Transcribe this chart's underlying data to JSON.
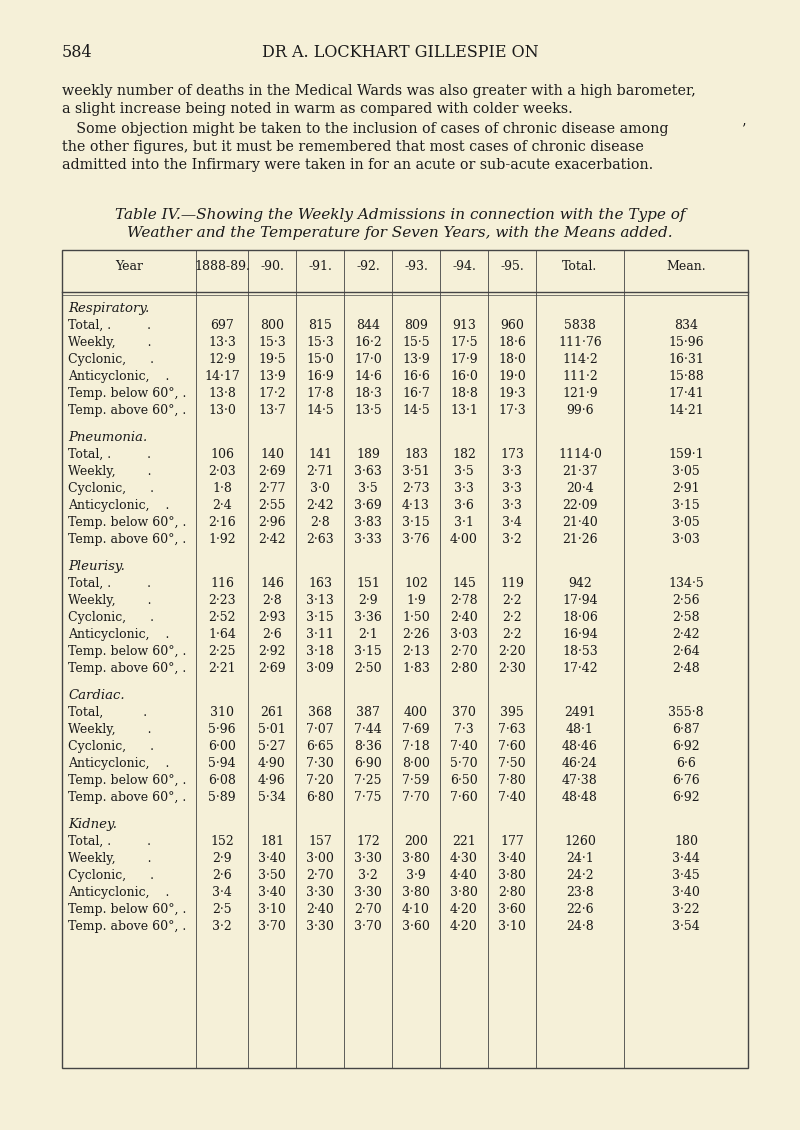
{
  "page_number": "584",
  "header": "DR A. LOCKHART GILLESPIE ON",
  "background_color": "#f5f0d8",
  "text_color": "#1a1a1a",
  "table_title_line1": "Table IV.—Showing the Weekly Admissions in connection with the Type of",
  "table_title_line2": "Weather and the Temperature for Seven Years, with the Means added.",
  "col_headers": [
    "Year",
    "1888-89.",
    "-90.",
    "-91.",
    "-92.",
    "-93.",
    "-94.",
    "-95.",
    "Total.",
    "Mean."
  ],
  "sections": [
    {
      "name": "Respiratory.",
      "rows": [
        {
          "label": "Total, .         .",
          "values": [
            "697",
            "800",
            "815",
            "844",
            "809",
            "913",
            "960",
            "5838",
            "834"
          ]
        },
        {
          "label": "Weekly,        .",
          "values": [
            "13·3",
            "15·3",
            "15·3",
            "16·2",
            "15·5",
            "17·5",
            "18·6",
            "111·76",
            "15·96"
          ]
        },
        {
          "label": "Cyclonic,      .",
          "values": [
            "12·9",
            "19·5",
            "15·0",
            "17·0",
            "13·9",
            "17·9",
            "18·0",
            "114·2",
            "16·31"
          ]
        },
        {
          "label": "Anticyclonic,    .",
          "values": [
            "14·17",
            "13·9",
            "16·9",
            "14·6",
            "16·6",
            "16·0",
            "19·0",
            "111·2",
            "15·88"
          ]
        },
        {
          "label": "Temp. below 60°, .",
          "values": [
            "13·8",
            "17·2",
            "17·8",
            "18·3",
            "16·7",
            "18·8",
            "19·3",
            "121·9",
            "17·41"
          ]
        },
        {
          "label": "Temp. above 60°, .",
          "values": [
            "13·0",
            "13·7",
            "14·5",
            "13·5",
            "14·5",
            "13·1",
            "17·3",
            "99·6",
            "14·21"
          ]
        }
      ]
    },
    {
      "name": "Pneumonia.",
      "rows": [
        {
          "label": "Total, .         .",
          "values": [
            "106",
            "140",
            "141",
            "189",
            "183",
            "182",
            "173",
            "1114·0",
            "159·1"
          ]
        },
        {
          "label": "Weekly,        .",
          "values": [
            "2·03",
            "2·69",
            "2·71",
            "3·63",
            "3·51",
            "3·5",
            "3·3",
            "21·37",
            "3·05"
          ]
        },
        {
          "label": "Cyclonic,      .",
          "values": [
            "1·8",
            "2·77",
            "3·0",
            "3·5",
            "2·73",
            "3·3",
            "3·3",
            "20·4",
            "2·91"
          ]
        },
        {
          "label": "Anticyclonic,    .",
          "values": [
            "2·4",
            "2·55",
            "2·42",
            "3·69",
            "4·13",
            "3·6",
            "3·3",
            "22·09",
            "3·15"
          ]
        },
        {
          "label": "Temp. below 60°, .",
          "values": [
            "2·16",
            "2·96",
            "2·8",
            "3·83",
            "3·15",
            "3·1",
            "3·4",
            "21·40",
            "3·05"
          ]
        },
        {
          "label": "Temp. above 60°, .",
          "values": [
            "1·92",
            "2·42",
            "2·63",
            "3·33",
            "3·76",
            "4·00",
            "3·2",
            "21·26",
            "3·03"
          ]
        }
      ]
    },
    {
      "name": "Pleurisy.",
      "rows": [
        {
          "label": "Total, .         .",
          "values": [
            "116",
            "146",
            "163",
            "151",
            "102",
            "145",
            "119",
            "942",
            "134·5"
          ]
        },
        {
          "label": "Weekly,        .",
          "values": [
            "2·23",
            "2·8",
            "3·13",
            "2·9",
            "1·9",
            "2·78",
            "2·2",
            "17·94",
            "2·56"
          ]
        },
        {
          "label": "Cyclonic,      .",
          "values": [
            "2·52",
            "2·93",
            "3·15",
            "3·36",
            "1·50",
            "2·40",
            "2·2",
            "18·06",
            "2·58"
          ]
        },
        {
          "label": "Anticyclonic,    .",
          "values": [
            "1·64",
            "2·6",
            "3·11",
            "2·1",
            "2·26",
            "3·03",
            "2·2",
            "16·94",
            "2·42"
          ]
        },
        {
          "label": "Temp. below 60°, .",
          "values": [
            "2·25",
            "2·92",
            "3·18",
            "3·15",
            "2·13",
            "2·70",
            "2·20",
            "18·53",
            "2·64"
          ]
        },
        {
          "label": "Temp. above 60°, .",
          "values": [
            "2·21",
            "2·69",
            "3·09",
            "2·50",
            "1·83",
            "2·80",
            "2·30",
            "17·42",
            "2·48"
          ]
        }
      ]
    },
    {
      "name": "Cardiac.",
      "rows": [
        {
          "label": "Total,          .",
          "values": [
            "310",
            "261",
            "368",
            "387",
            "400",
            "370",
            "395",
            "2491",
            "355·8"
          ]
        },
        {
          "label": "Weekly,        .",
          "values": [
            "5·96",
            "5·01",
            "7·07",
            "7·44",
            "7·69",
            "7·3",
            "7·63",
            "48·1",
            "6·87"
          ]
        },
        {
          "label": "Cyclonic,      .",
          "values": [
            "6·00",
            "5·27",
            "6·65",
            "8·36",
            "7·18",
            "7·40",
            "7·60",
            "48·46",
            "6·92"
          ]
        },
        {
          "label": "Anticyclonic,    .",
          "values": [
            "5·94",
            "4·90",
            "7·30",
            "6·90",
            "8·00",
            "5·70",
            "7·50",
            "46·24",
            "6·6"
          ]
        },
        {
          "label": "Temp. below 60°, .",
          "values": [
            "6·08",
            "4·96",
            "7·20",
            "7·25",
            "7·59",
            "6·50",
            "7·80",
            "47·38",
            "6·76"
          ]
        },
        {
          "label": "Temp. above 60°, .",
          "values": [
            "5·89",
            "5·34",
            "6·80",
            "7·75",
            "7·70",
            "7·60",
            "7·40",
            "48·48",
            "6·92"
          ]
        }
      ]
    },
    {
      "name": "Kidney.",
      "rows": [
        {
          "label": "Total, .         .",
          "values": [
            "152",
            "181",
            "157",
            "172",
            "200",
            "221",
            "177",
            "1260",
            "180"
          ]
        },
        {
          "label": "Weekly,        .",
          "values": [
            "2·9",
            "3·40",
            "3·00",
            "3·30",
            "3·80",
            "4·30",
            "3·40",
            "24·1",
            "3·44"
          ]
        },
        {
          "label": "Cyclonic,      .",
          "values": [
            "2·6",
            "3·50",
            "2·70",
            "3·2",
            "3·9",
            "4·40",
            "3·80",
            "24·2",
            "3·45"
          ]
        },
        {
          "label": "Anticyclonic,    .",
          "values": [
            "3·4",
            "3·40",
            "3·30",
            "3·30",
            "3·80",
            "3·80",
            "2·80",
            "23·8",
            "3·40"
          ]
        },
        {
          "label": "Temp. below 60°, .",
          "values": [
            "2·5",
            "3·10",
            "2·40",
            "2·70",
            "4·10",
            "4·20",
            "3·60",
            "22·6",
            "3·22"
          ]
        },
        {
          "label": "Temp. above 60°, .",
          "values": [
            "3·2",
            "3·70",
            "3·30",
            "3·70",
            "3·60",
            "4·20",
            "3·10",
            "24·8",
            "3·54"
          ]
        }
      ]
    }
  ]
}
